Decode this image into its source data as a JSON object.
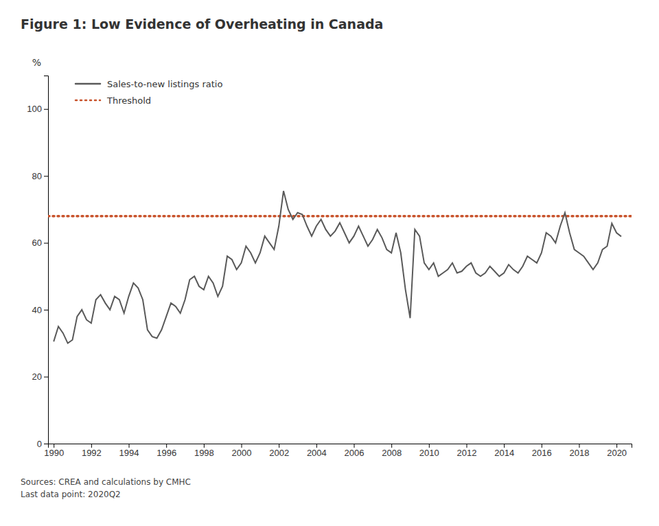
{
  "chart_data": {
    "type": "line",
    "title": "Figure 1: Low Evidence of Overheating in Canada",
    "y_label": "%",
    "source": [
      "Sources: CREA and calculations by CMHC",
      "Last data point: 2020Q2"
    ],
    "xlim": [
      1989.7,
      2020.8
    ],
    "xticks": [
      1990,
      1992,
      1994,
      1996,
      1998,
      2000,
      2002,
      2004,
      2006,
      2008,
      2010,
      2012,
      2014,
      2016,
      2018,
      2020
    ],
    "ylim": [
      0,
      110
    ],
    "yticks": [
      0,
      20,
      40,
      60,
      80,
      100
    ],
    "grid": false,
    "legend": "top-left",
    "x": [
      1990.0,
      1990.25,
      1990.5,
      1990.75,
      1991.0,
      1991.25,
      1991.5,
      1991.75,
      1992.0,
      1992.25,
      1992.5,
      1992.75,
      1993.0,
      1993.25,
      1993.5,
      1993.75,
      1994.0,
      1994.25,
      1994.5,
      1994.75,
      1995.0,
      1995.25,
      1995.5,
      1995.75,
      1996.0,
      1996.25,
      1996.5,
      1996.75,
      1997.0,
      1997.25,
      1997.5,
      1997.75,
      1998.0,
      1998.25,
      1998.5,
      1998.75,
      1999.0,
      1999.25,
      1999.5,
      1999.75,
      2000.0,
      2000.25,
      2000.5,
      2000.75,
      2001.0,
      2001.25,
      2001.5,
      2001.75,
      2002.0,
      2002.25,
      2002.5,
      2002.75,
      2003.0,
      2003.25,
      2003.5,
      2003.75,
      2004.0,
      2004.25,
      2004.5,
      2004.75,
      2005.0,
      2005.25,
      2005.5,
      2005.75,
      2006.0,
      2006.25,
      2006.5,
      2006.75,
      2007.0,
      2007.25,
      2007.5,
      2007.75,
      2008.0,
      2008.25,
      2008.5,
      2008.75,
      2009.0,
      2009.25,
      2009.5,
      2009.75,
      2010.0,
      2010.25,
      2010.5,
      2010.75,
      2011.0,
      2011.25,
      2011.5,
      2011.75,
      2012.0,
      2012.25,
      2012.5,
      2012.75,
      2013.0,
      2013.25,
      2013.5,
      2013.75,
      2014.0,
      2014.25,
      2014.5,
      2014.75,
      2015.0,
      2015.25,
      2015.5,
      2015.75,
      2016.0,
      2016.25,
      2016.5,
      2016.75,
      2017.0,
      2017.25,
      2017.5,
      2017.75,
      2018.0,
      2018.25,
      2018.5,
      2018.75,
      2019.0,
      2019.25,
      2019.5,
      2019.75,
      2020.0,
      2020.25
    ],
    "series": [
      {
        "name": "Sales-to-new listings ratio",
        "color": "#595959",
        "line_style": "solid",
        "values": [
          30.5,
          35.0,
          33.0,
          30.0,
          31.0,
          38.0,
          40.0,
          37.0,
          36.0,
          43.0,
          44.5,
          42.0,
          40.0,
          44.0,
          43.0,
          39.0,
          44.0,
          48.0,
          46.5,
          43.0,
          34.0,
          32.0,
          31.5,
          34.0,
          38.0,
          42.0,
          41.0,
          39.0,
          43.0,
          49.0,
          50.0,
          47.0,
          46.0,
          50.0,
          48.0,
          44.0,
          47.0,
          56.0,
          55.0,
          52.0,
          54.0,
          59.0,
          57.0,
          54.0,
          57.0,
          62.0,
          60.0,
          58.0,
          65.0,
          75.5,
          70.0,
          67.0,
          69.0,
          68.5,
          65.0,
          62.0,
          65.0,
          67.0,
          64.0,
          62.0,
          63.5,
          66.0,
          63.0,
          60.0,
          62.0,
          65.0,
          62.0,
          59.0,
          61.0,
          64.0,
          61.5,
          58.0,
          57.0,
          63.0,
          57.0,
          46.0,
          37.5,
          64.0,
          62.0,
          54.0,
          52.0,
          54.0,
          50.0,
          51.0,
          52.0,
          54.0,
          51.0,
          51.5,
          53.0,
          54.0,
          51.0,
          50.0,
          51.0,
          53.0,
          51.5,
          50.0,
          51.0,
          53.5,
          52.0,
          51.0,
          53.0,
          56.0,
          55.0,
          54.0,
          57.0,
          63.0,
          62.0,
          60.0,
          65.0,
          69.0,
          63.0,
          58.0,
          57.0,
          56.0,
          54.0,
          52.0,
          54.0,
          58.0,
          59.0,
          65.8,
          63.0,
          61.9
        ]
      }
    ],
    "threshold": {
      "name": "Threshold",
      "value": 68,
      "color": "#c8522a",
      "line_style": "dotted"
    }
  }
}
